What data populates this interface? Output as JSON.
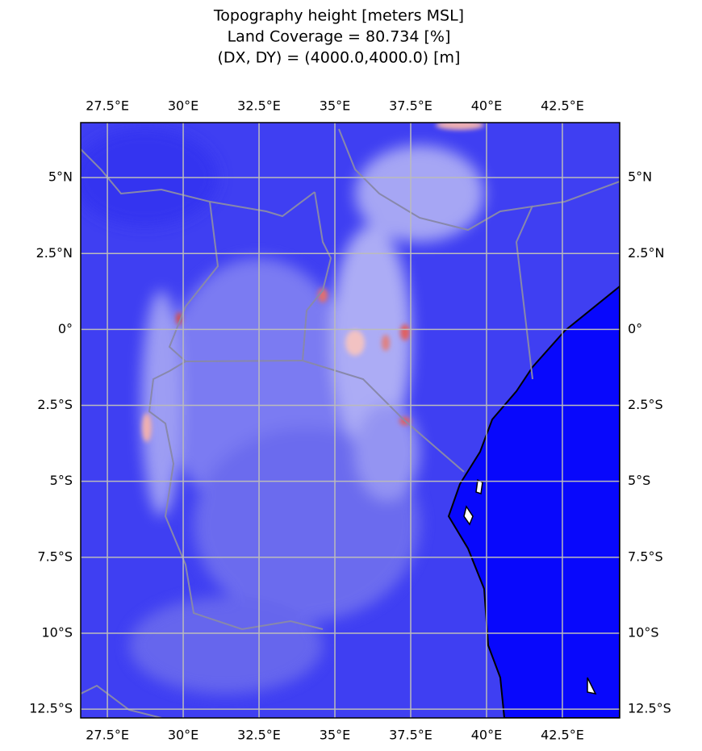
{
  "chart_data": {
    "type": "map",
    "title_lines": [
      "Topography height [meters MSL]",
      "Land Coverage = 80.734 [%]",
      "(DX, DY) = (4000.0,4000.0) [m]"
    ],
    "xlim": [
      26.62,
      44.39
    ],
    "ylim": [
      -12.79,
      6.81
    ],
    "xticks": [
      {
        "value": 27.5,
        "label": "27.5°E"
      },
      {
        "value": 30,
        "label": "30°E"
      },
      {
        "value": 32.5,
        "label": "32.5°E"
      },
      {
        "value": 35,
        "label": "35°E"
      },
      {
        "value": 37.5,
        "label": "37.5°E"
      },
      {
        "value": 40,
        "label": "40°E"
      },
      {
        "value": 42.5,
        "label": "42.5°E"
      }
    ],
    "yticks": [
      {
        "value": 5,
        "label": "5°N"
      },
      {
        "value": 2.5,
        "label": "2.5°N"
      },
      {
        "value": 0,
        "label": "0°"
      },
      {
        "value": -2.5,
        "label": "2.5°S"
      },
      {
        "value": -5,
        "label": "5°S"
      },
      {
        "value": -7.5,
        "label": "7.5°S"
      },
      {
        "value": -10,
        "label": "10°S"
      },
      {
        "value": -12.5,
        "label": "12.5°S"
      }
    ],
    "grid": true
  }
}
